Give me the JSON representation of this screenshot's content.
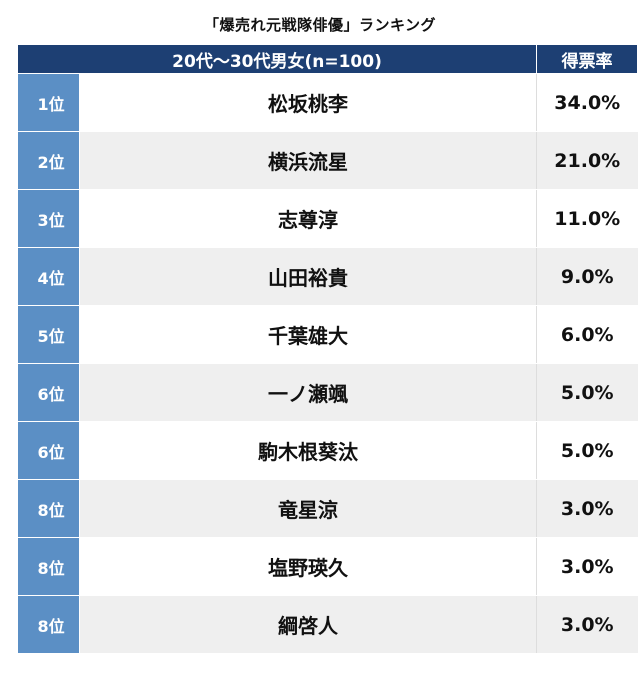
{
  "title": "「爆売れ元戦隊俳優」ランキング",
  "chart_data": {
    "type": "table",
    "title": "「爆売れ元戦隊俳優」ランキング",
    "columns": [
      "20代〜30代男女(n=100)",
      "得票率"
    ],
    "rows": [
      {
        "rank": "1位",
        "name": "松坂桃李",
        "percent": "34.0%",
        "value": 34.0
      },
      {
        "rank": "2位",
        "name": "横浜流星",
        "percent": "21.0%",
        "value": 21.0
      },
      {
        "rank": "3位",
        "name": "志尊淳",
        "percent": "11.0%",
        "value": 11.0
      },
      {
        "rank": "4位",
        "name": "山田裕貴",
        "percent": "9.0%",
        "value": 9.0
      },
      {
        "rank": "5位",
        "name": "千葉雄大",
        "percent": "6.0%",
        "value": 6.0
      },
      {
        "rank": "6位",
        "name": "一ノ瀬颯",
        "percent": "5.0%",
        "value": 5.0
      },
      {
        "rank": "6位",
        "name": "駒木根葵汰",
        "percent": "5.0%",
        "value": 5.0
      },
      {
        "rank": "8位",
        "name": "竜星涼",
        "percent": "3.0%",
        "value": 3.0
      },
      {
        "rank": "8位",
        "name": "塩野瑛久",
        "percent": "3.0%",
        "value": 3.0
      },
      {
        "rank": "8位",
        "name": "綱啓人",
        "percent": "3.0%",
        "value": 3.0
      }
    ]
  },
  "colors": {
    "header": "#1d3f73",
    "rank_cell": "#5b8fc5",
    "row_stripe": "#efefef"
  }
}
